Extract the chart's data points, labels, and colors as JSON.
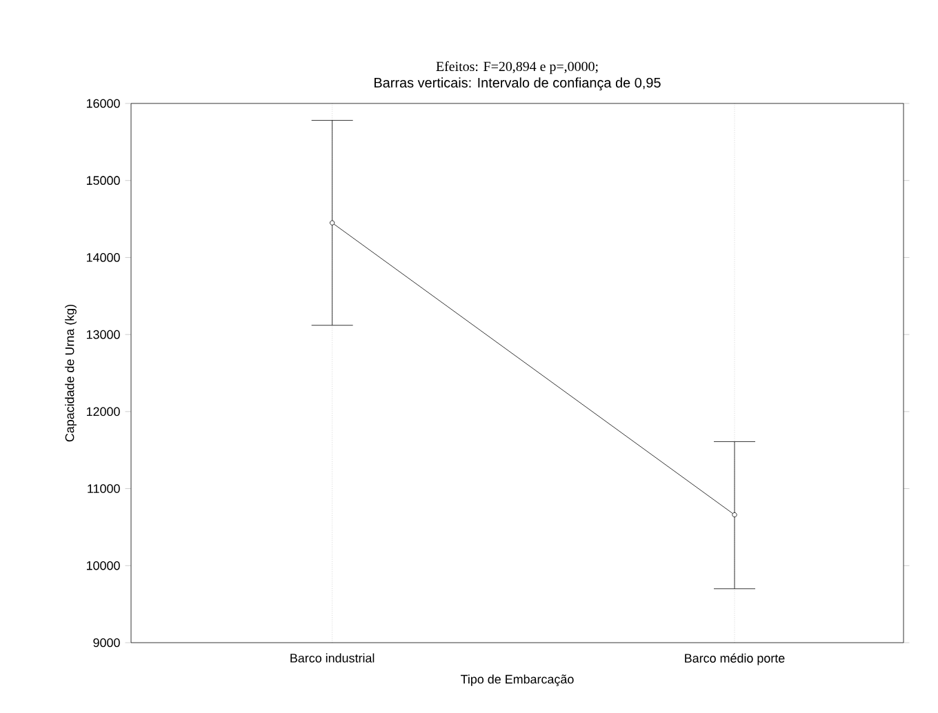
{
  "chart_data": {
    "type": "line",
    "title": "Efeitos: F=20,894 e p=,0000;",
    "subtitle": "Barras verticais: Intervalo de confiança de 0,95",
    "xlabel": "Tipo de Embarcação",
    "ylabel": "Capacidade de Urna (kg)",
    "categories": [
      "Barco industrial",
      "Barco médio porte"
    ],
    "series": [
      {
        "color": "#000000",
        "values": [
          14450,
          10660
        ],
        "errors": [
          [
            13120,
            15780
          ],
          [
            9700,
            11610
          ]
        ]
      }
    ],
    "ylim": [
      9000,
      16000
    ],
    "yticks": [
      9000,
      10000,
      11000,
      12000,
      13000,
      14000,
      15000,
      16000
    ],
    "grid": "x",
    "marker": "circle",
    "line_style": "solid"
  }
}
